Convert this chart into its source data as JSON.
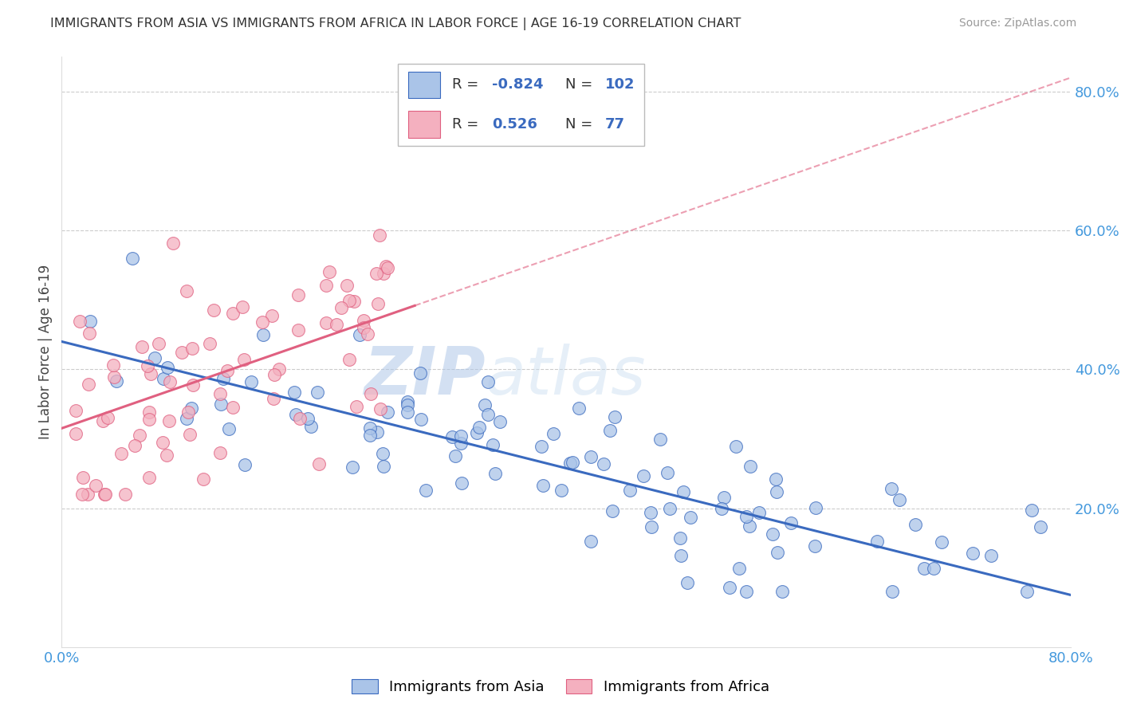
{
  "title": "IMMIGRANTS FROM ASIA VS IMMIGRANTS FROM AFRICA IN LABOR FORCE | AGE 16-19 CORRELATION CHART",
  "source": "Source: ZipAtlas.com",
  "ylabel": "In Labor Force | Age 16-19",
  "xlim": [
    0.0,
    0.8
  ],
  "ylim": [
    0.0,
    0.85
  ],
  "yticks": [
    0.2,
    0.4,
    0.6,
    0.8
  ],
  "ytick_labels": [
    "20.0%",
    "40.0%",
    "60.0%",
    "80.0%"
  ],
  "r_asia": -0.824,
  "n_asia": 102,
  "r_africa": 0.526,
  "n_africa": 77,
  "color_asia": "#aac4e8",
  "color_africa": "#f4b0bf",
  "line_color_asia": "#3a6abf",
  "line_color_africa": "#e06080",
  "watermark_zip": "ZIP",
  "watermark_atlas": "atlas",
  "legend_label_asia": "Immigrants from Asia",
  "legend_label_africa": "Immigrants from Africa",
  "asia_line_x0": 0.0,
  "asia_line_y0": 0.44,
  "asia_line_x1": 0.8,
  "asia_line_y1": 0.075,
  "africa_line_x0": 0.0,
  "africa_line_y0": 0.315,
  "africa_line_x1": 0.8,
  "africa_line_y1": 0.82
}
